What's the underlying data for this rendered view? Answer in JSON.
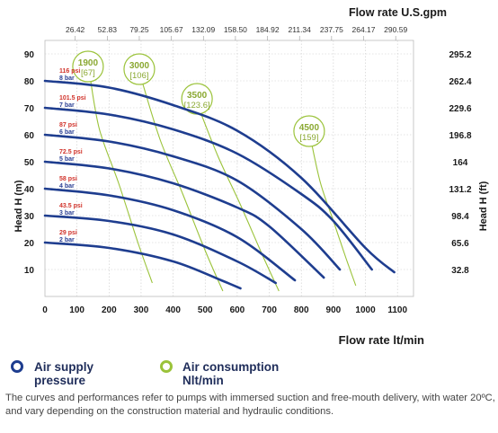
{
  "chart_data": {
    "type": "line",
    "top_axis_title": "Flow rate U.S.gpm",
    "top_ticks": [
      "26.42",
      "52.83",
      "79.25",
      "105.67",
      "132.09",
      "158.50",
      "184.92",
      "211.34",
      "237.75",
      "264.17",
      "290.59"
    ],
    "xlabel": "Flow rate lt/min",
    "ylabel": "Head H (m)",
    "ylabel_right": "Head H (ft)",
    "x_ticks": [
      0,
      100,
      200,
      300,
      400,
      500,
      600,
      700,
      800,
      900,
      1000,
      1100
    ],
    "y_ticks": [
      10,
      20,
      30,
      40,
      50,
      60,
      70,
      80,
      90
    ],
    "y_right_ticks": [
      "32.8",
      "65.6",
      "98.4",
      "131.2",
      "164",
      "196.8",
      "229.6",
      "262.4",
      "295.2"
    ],
    "xlim": [
      0,
      1150
    ],
    "ylim": [
      0,
      95
    ],
    "grid": true,
    "series": [
      {
        "label_psi": "116 psi",
        "label_bar": "8 bar",
        "x": [
          0,
          200,
          400,
          600,
          800,
          1000,
          1090
        ],
        "y": [
          80,
          77.5,
          71,
          61.5,
          44,
          18,
          9
        ]
      },
      {
        "label_psi": "101.5 psi",
        "label_bar": "7 bar",
        "x": [
          0,
          200,
          400,
          600,
          800,
          900,
          1020
        ],
        "y": [
          70,
          67.5,
          62,
          53,
          38,
          28,
          10
        ]
      },
      {
        "label_psi": "87 psi",
        "label_bar": "6 bar",
        "x": [
          0,
          200,
          400,
          600,
          800,
          920
        ],
        "y": [
          60,
          57.5,
          52,
          43,
          25,
          10
        ]
      },
      {
        "label_psi": "72.5 psi",
        "label_bar": "5 bar",
        "x": [
          0,
          200,
          400,
          600,
          700,
          870
        ],
        "y": [
          50,
          47.5,
          42,
          33,
          26,
          7
        ]
      },
      {
        "label_psi": "58 psi",
        "label_bar": "4 bar",
        "x": [
          0,
          200,
          400,
          600,
          780
        ],
        "y": [
          40,
          37.5,
          32,
          22,
          6
        ]
      },
      {
        "label_psi": "43.5 psi",
        "label_bar": "3 bar",
        "x": [
          0,
          200,
          400,
          600,
          720
        ],
        "y": [
          30,
          28,
          23,
          13,
          5
        ]
      },
      {
        "label_psi": "29 psi",
        "label_bar": "2 bar",
        "x": [
          0,
          200,
          400,
          550,
          610
        ],
        "y": [
          20,
          18,
          13,
          6,
          3
        ]
      }
    ],
    "air_consumption": [
      {
        "label": "1900",
        "bracket": "[67]",
        "x": [
          140,
          170,
          230,
          290,
          335
        ],
        "y": [
          82,
          62,
          42,
          20,
          5
        ]
      },
      {
        "label": "3000",
        "bracket": "[106]",
        "x": [
          300,
          360,
          430,
          500,
          555
        ],
        "y": [
          81,
          58,
          38,
          17,
          2
        ]
      },
      {
        "label": "3500",
        "bracket": "[123.6]",
        "x": [
          480,
          540,
          610,
          680,
          730
        ],
        "y": [
          70,
          52,
          34,
          15,
          2
        ]
      },
      {
        "label": "4500",
        "bracket": "[159]",
        "x": [
          830,
          860,
          900,
          940,
          970
        ],
        "y": [
          58,
          42,
          28,
          14,
          4
        ]
      }
    ]
  },
  "legend": {
    "air_supply": "Air supply\npressure",
    "air_supply_color": "#1e3d8f",
    "air_consumption": "Air consumption\nNlt/min",
    "air_consumption_color": "#9bc33a"
  },
  "footnote": "The curves and performances refer to pumps with immersed suction and free-mouth delivery, with water 20ºC, and vary depending on the construction material and hydraulic conditions."
}
